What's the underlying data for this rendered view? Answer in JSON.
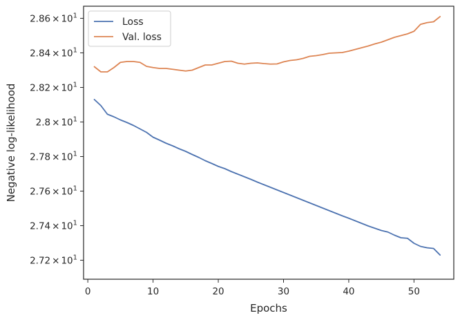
{
  "chart_data": {
    "type": "line",
    "xlabel": "Epochs",
    "ylabel": "Negative log-likelihood",
    "xlim": [
      -0.65,
      56.1
    ],
    "ylim": [
      27.09,
      28.67
    ],
    "grid": false,
    "legend_position": "top-left",
    "x_ticks": [
      {
        "value": 0,
        "label": "0"
      },
      {
        "value": 10,
        "label": "10"
      },
      {
        "value": 20,
        "label": "20"
      },
      {
        "value": 30,
        "label": "30"
      },
      {
        "value": 40,
        "label": "40"
      },
      {
        "value": 50,
        "label": "50"
      }
    ],
    "y_ticks": [
      {
        "value": 27.2,
        "mantissa": "2.72",
        "times": "×",
        "base": "10",
        "exp": "1"
      },
      {
        "value": 27.4,
        "mantissa": "2.74",
        "times": "×",
        "base": "10",
        "exp": "1"
      },
      {
        "value": 27.6,
        "mantissa": "2.76",
        "times": "×",
        "base": "10",
        "exp": "1"
      },
      {
        "value": 27.8,
        "mantissa": "2.78",
        "times": "×",
        "base": "10",
        "exp": "1"
      },
      {
        "value": 28.0,
        "mantissa": "2.8",
        "times": "×",
        "base": "10",
        "exp": "1"
      },
      {
        "value": 28.2,
        "mantissa": "2.82",
        "times": "×",
        "base": "10",
        "exp": "1"
      },
      {
        "value": 28.4,
        "mantissa": "2.84",
        "times": "×",
        "base": "10",
        "exp": "1"
      },
      {
        "value": 28.6,
        "mantissa": "2.86",
        "times": "×",
        "base": "10",
        "exp": "1"
      }
    ],
    "x": [
      1,
      2,
      3,
      4,
      5,
      6,
      7,
      8,
      9,
      10,
      11,
      12,
      13,
      14,
      15,
      16,
      17,
      18,
      19,
      20,
      21,
      22,
      23,
      24,
      25,
      26,
      27,
      28,
      29,
      30,
      31,
      32,
      33,
      34,
      35,
      36,
      37,
      38,
      39,
      40,
      41,
      42,
      43,
      44,
      45,
      46,
      47,
      48,
      49,
      50,
      51,
      52,
      53,
      54
    ],
    "series": [
      {
        "name": "Loss",
        "color": "#4c72b0",
        "values": [
          28.13,
          28.095,
          28.045,
          28.03,
          28.012,
          27.997,
          27.98,
          27.96,
          27.94,
          27.912,
          27.895,
          27.877,
          27.862,
          27.845,
          27.83,
          27.812,
          27.795,
          27.776,
          27.76,
          27.743,
          27.73,
          27.713,
          27.698,
          27.683,
          27.668,
          27.652,
          27.637,
          27.622,
          27.607,
          27.592,
          27.577,
          27.562,
          27.547,
          27.532,
          27.517,
          27.502,
          27.487,
          27.472,
          27.457,
          27.443,
          27.428,
          27.413,
          27.398,
          27.385,
          27.372,
          27.363,
          27.345,
          27.33,
          27.327,
          27.298,
          27.28,
          27.272,
          27.268,
          27.23
        ]
      },
      {
        "name": "Val. loss",
        "color": "#dd8452",
        "values": [
          28.32,
          28.29,
          28.29,
          28.315,
          28.345,
          28.35,
          28.35,
          28.345,
          28.322,
          28.315,
          28.31,
          28.31,
          28.305,
          28.3,
          28.295,
          28.3,
          28.315,
          28.33,
          28.33,
          28.34,
          28.35,
          28.352,
          28.34,
          28.335,
          28.34,
          28.342,
          28.338,
          28.335,
          28.336,
          28.348,
          28.356,
          28.36,
          28.368,
          28.38,
          28.384,
          28.39,
          28.398,
          28.4,
          28.402,
          28.41,
          28.42,
          28.43,
          28.44,
          28.452,
          28.462,
          28.476,
          28.49,
          28.5,
          28.51,
          28.525,
          28.565,
          28.575,
          28.58,
          28.61
        ]
      }
    ]
  }
}
